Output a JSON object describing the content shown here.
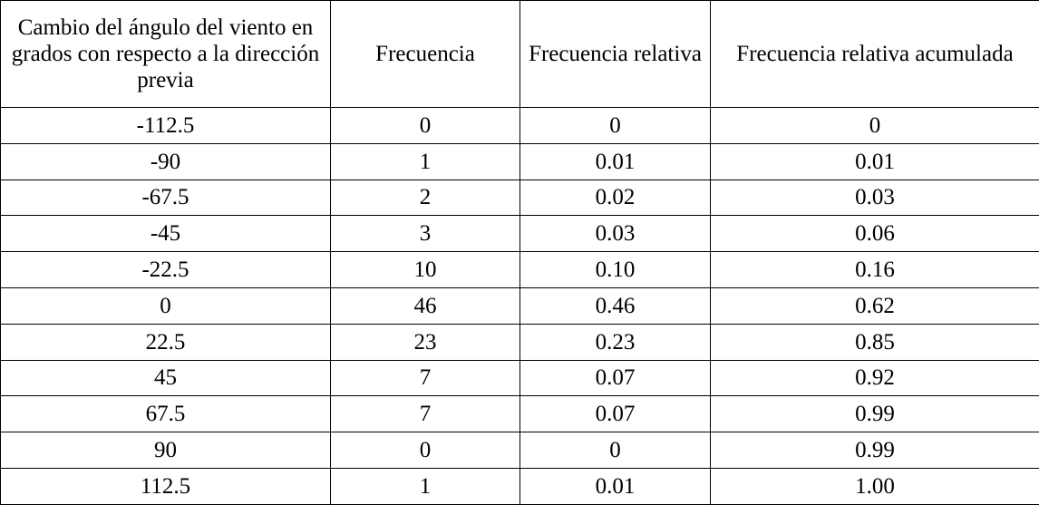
{
  "table": {
    "headers": [
      "Cambio del ángulo del viento en grados con respecto a la dirección previa",
      "Frecuencia",
      "Frecuencia relativa",
      "Frecuencia relativa acumulada"
    ],
    "rows": [
      [
        "-112.5",
        "0",
        "0",
        "0"
      ],
      [
        "-90",
        "1",
        "0.01",
        "0.01"
      ],
      [
        "-67.5",
        "2",
        "0.02",
        "0.03"
      ],
      [
        "-45",
        "3",
        "0.03",
        "0.06"
      ],
      [
        "-22.5",
        "10",
        "0.10",
        "0.16"
      ],
      [
        "0",
        "46",
        "0.46",
        "0.62"
      ],
      [
        "22.5",
        "23",
        "0.23",
        "0.85"
      ],
      [
        "45",
        "7",
        "0.07",
        "0.92"
      ],
      [
        "67.5",
        "7",
        "0.07",
        "0.99"
      ],
      [
        "90",
        "0",
        "0",
        "0.99"
      ],
      [
        "112.5",
        "1",
        "0.01",
        "1.00"
      ]
    ]
  }
}
